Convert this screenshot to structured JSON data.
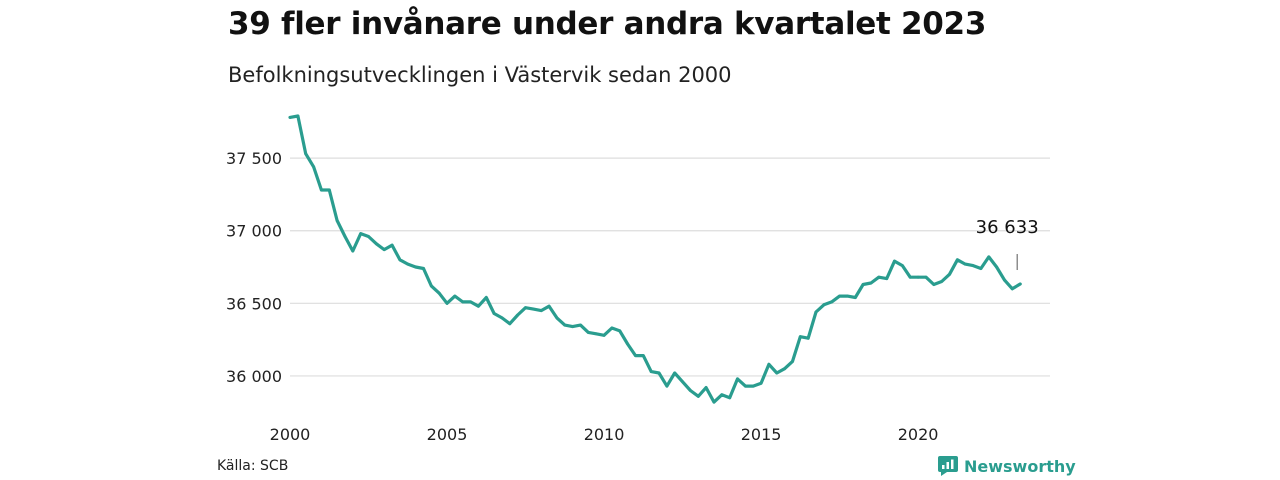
{
  "header": {
    "title": "39 fler invånare under andra kvartalet 2023",
    "subtitle": "Befolkningsutvecklingen i Västervik sedan 2000"
  },
  "footer": {
    "source": "Källa: SCB",
    "brand": "Newsworthy"
  },
  "colors": {
    "line": "#2a9d8f",
    "grid": "#dddddd",
    "brand": "#2a9d8f"
  },
  "icons": {
    "brand": "newsworthy-logo-icon"
  },
  "chart_data": {
    "type": "line",
    "title": "39 fler invånare under andra kvartalet 2023",
    "subtitle": "Befolkningsutvecklingen i Västervik sedan 2000",
    "xlabel": "",
    "ylabel": "",
    "xlim": [
      2000,
      2024.2
    ],
    "ylim": [
      35800,
      37900
    ],
    "x_ticks": [
      {
        "value": 2000,
        "label": "2000"
      },
      {
        "value": 2005,
        "label": "2005"
      },
      {
        "value": 2010,
        "label": "2010"
      },
      {
        "value": 2015,
        "label": "2015"
      },
      {
        "value": 2020,
        "label": "2020"
      }
    ],
    "y_ticks": [
      {
        "value": 36000,
        "label": "36 000"
      },
      {
        "value": 36500,
        "label": "36 500"
      },
      {
        "value": 37000,
        "label": "37 000"
      },
      {
        "value": 37500,
        "label": "37 500"
      }
    ],
    "grid": true,
    "annotation": {
      "x": 2023.25,
      "y": 36633,
      "label": "36 633"
    },
    "series": [
      {
        "x_start": 2000.0,
        "x_step": 0.25,
        "values": [
          37780,
          37790,
          37530,
          37440,
          37280,
          37280,
          37070,
          36960,
          36860,
          36980,
          36960,
          36910,
          36870,
          36900,
          36800,
          36770,
          36750,
          36740,
          36620,
          36570,
          36500,
          36550,
          36510,
          36510,
          36480,
          36540,
          36430,
          36400,
          36360,
          36420,
          36470,
          36460,
          36450,
          36480,
          36400,
          36350,
          36340,
          36350,
          36300,
          36290,
          36280,
          36330,
          36310,
          36220,
          36140,
          36140,
          36030,
          36020,
          35930,
          36020,
          35960,
          35900,
          35860,
          35920,
          35820,
          35870,
          35850,
          35980,
          35930,
          35930,
          35950,
          36080,
          36020,
          36050,
          36100,
          36270,
          36260,
          36440,
          36490,
          36510,
          36550,
          36550,
          36540,
          36630,
          36640,
          36680,
          36670,
          36790,
          36760,
          36680,
          36680,
          36680,
          36630,
          36650,
          36700,
          36800,
          36770,
          36760,
          36740,
          36820,
          36750,
          36660,
          36600,
          36633
        ]
      }
    ]
  }
}
